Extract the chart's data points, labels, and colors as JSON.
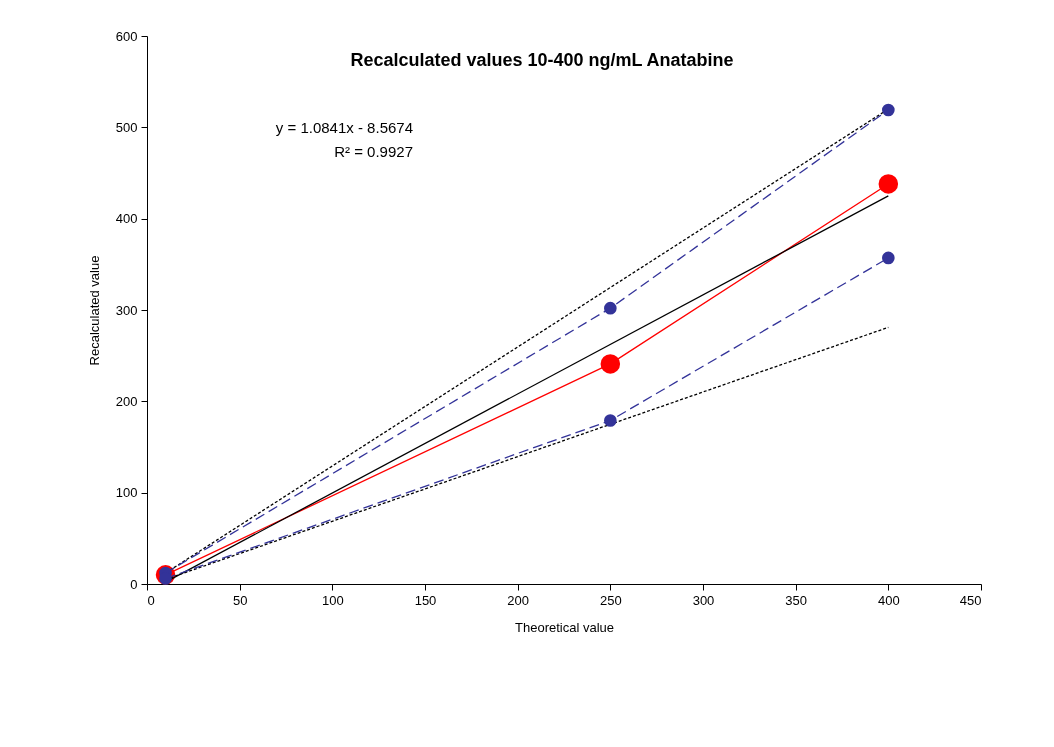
{
  "chart_data": {
    "type": "line",
    "title": "Recalculated values 10-400 ng/mL Anatabine",
    "xlabel": "Theoretical value",
    "ylabel": "Recalculated value",
    "annotations": [
      "y = 1.0841x - 8.5674",
      "R² = 0.9927"
    ],
    "xlim": [
      0,
      450
    ],
    "xticks": [
      0,
      50,
      100,
      150,
      200,
      250,
      300,
      350,
      400,
      450
    ],
    "ylim": [
      0,
      600
    ],
    "yticks": [
      0,
      100,
      200,
      300,
      400,
      500,
      600
    ],
    "grid": false,
    "series": [
      {
        "color": "#ff0000",
        "x": [
          10,
          250,
          400
        ],
        "values": [
          10,
          241,
          438
        ],
        "marker": "circle",
        "line_style": "solid"
      },
      {
        "color": "#000000",
        "x": [
          10,
          400
        ],
        "values": [
          2,
          425
        ],
        "marker": "none",
        "line_style": "solid"
      },
      {
        "color": "#000000",
        "x": [
          10,
          400
        ],
        "values": [
          12,
          520
        ],
        "marker": "none",
        "line_style": "dotted"
      },
      {
        "color": "#000000",
        "x": [
          10,
          400
        ],
        "values": [
          5,
          281
        ],
        "marker": "none",
        "line_style": "dotted"
      },
      {
        "color": "#333399",
        "x": [
          10,
          250,
          400
        ],
        "values": [
          12,
          302,
          519
        ],
        "marker": "circle",
        "line_style": "dashed"
      },
      {
        "color": "#333399",
        "x": [
          10,
          250,
          400
        ],
        "values": [
          6,
          179,
          357
        ],
        "marker": "circle",
        "line_style": "dashed"
      }
    ]
  }
}
